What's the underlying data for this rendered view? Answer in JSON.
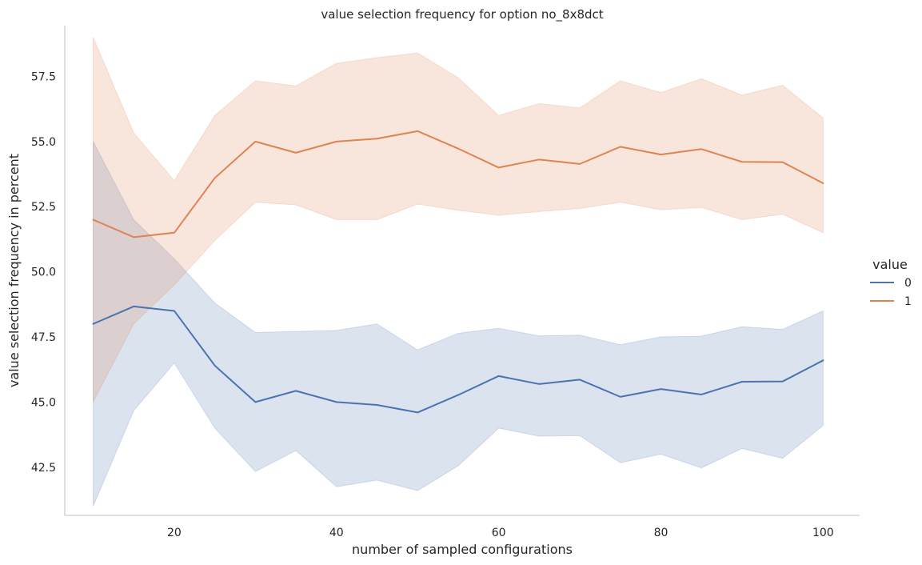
{
  "chart_data": {
    "type": "line",
    "title": "value selection frequency for option no_8x8dct",
    "xlabel": "number of sampled configurations",
    "ylabel": "value selection frequency in percent",
    "xlim": [
      6.5,
      104.5
    ],
    "ylim": [
      40.65,
      59.45
    ],
    "xticks": [
      20,
      40,
      60,
      80,
      100
    ],
    "xtick_labels": [
      "20",
      "40",
      "60",
      "80",
      "100"
    ],
    "yticks": [
      42.5,
      45.0,
      47.5,
      50.0,
      52.5,
      55.0,
      57.5
    ],
    "ytick_labels": [
      "42.5",
      "45.0",
      "47.5",
      "50.0",
      "52.5",
      "55.0",
      "57.5"
    ],
    "grid": false,
    "legend": {
      "title": "value",
      "position": "right"
    },
    "x": [
      10,
      15,
      20,
      25,
      30,
      35,
      40,
      45,
      50,
      55,
      60,
      65,
      70,
      75,
      80,
      85,
      90,
      95,
      100
    ],
    "series": [
      {
        "name": "0",
        "color": "#4c72b0",
        "values": [
          48.0,
          48.67,
          48.5,
          46.4,
          45.0,
          45.43,
          45.0,
          44.89,
          44.6,
          45.27,
          46.0,
          45.69,
          45.86,
          45.2,
          45.5,
          45.29,
          45.78,
          45.79,
          46.6
        ],
        "ci_low": [
          41.0,
          44.67,
          46.5,
          44.0,
          42.33,
          43.14,
          41.75,
          42.0,
          41.6,
          42.55,
          44.0,
          43.69,
          43.71,
          42.67,
          43.0,
          42.47,
          43.22,
          42.84,
          44.1
        ],
        "ci_high": [
          55.0,
          52.0,
          50.5,
          48.8,
          47.67,
          47.71,
          47.75,
          48.0,
          47.0,
          47.64,
          47.83,
          47.54,
          47.57,
          47.2,
          47.5,
          47.53,
          47.89,
          47.79,
          48.5
        ]
      },
      {
        "name": "1",
        "color": "#dd8452",
        "values": [
          52.0,
          51.33,
          51.5,
          53.6,
          55.0,
          54.57,
          55.0,
          55.11,
          55.4,
          54.73,
          54.0,
          54.31,
          54.14,
          54.8,
          54.5,
          54.71,
          54.22,
          54.21,
          53.4
        ],
        "ci_low": [
          45.0,
          48.0,
          49.5,
          51.2,
          52.67,
          52.57,
          52.0,
          52.0,
          52.6,
          52.36,
          52.17,
          52.31,
          52.43,
          52.67,
          52.38,
          52.47,
          52.0,
          52.21,
          51.5
        ],
        "ci_high": [
          59.0,
          55.33,
          53.5,
          56.0,
          57.33,
          57.14,
          58.0,
          58.22,
          58.4,
          57.45,
          56.0,
          56.46,
          56.29,
          57.33,
          56.88,
          57.41,
          56.78,
          57.16,
          55.9
        ]
      }
    ]
  }
}
